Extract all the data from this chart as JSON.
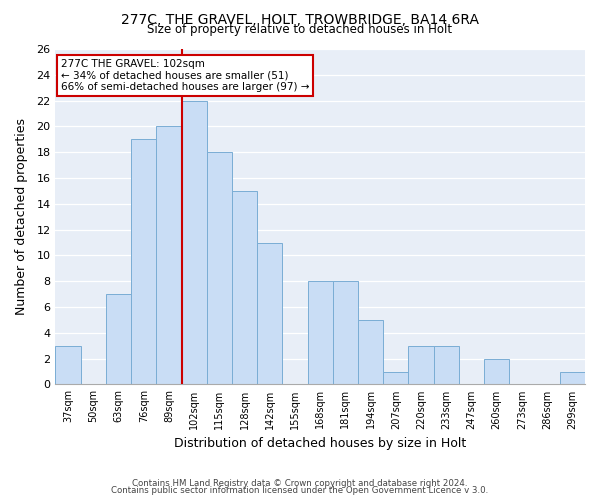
{
  "title1": "277C, THE GRAVEL, HOLT, TROWBRIDGE, BA14 6RA",
  "title2": "Size of property relative to detached houses in Holt",
  "xlabel": "Distribution of detached houses by size in Holt",
  "ylabel": "Number of detached properties",
  "footer1": "Contains HM Land Registry data © Crown copyright and database right 2024.",
  "footer2": "Contains public sector information licensed under the Open Government Licence v 3.0.",
  "bin_labels": [
    "37sqm",
    "50sqm",
    "63sqm",
    "76sqm",
    "89sqm",
    "102sqm",
    "115sqm",
    "128sqm",
    "142sqm",
    "155sqm",
    "168sqm",
    "181sqm",
    "194sqm",
    "207sqm",
    "220sqm",
    "233sqm",
    "247sqm",
    "260sqm",
    "273sqm",
    "286sqm",
    "299sqm"
  ],
  "bar_values": [
    3,
    0,
    7,
    19,
    20,
    22,
    18,
    15,
    11,
    0,
    8,
    8,
    5,
    1,
    3,
    3,
    0,
    2,
    0,
    0,
    1
  ],
  "bar_color": "#c9ddf5",
  "bar_edge_color": "#7aadd4",
  "highlight_bin_index": 5,
  "highlight_color": "#cc0000",
  "ylim": [
    0,
    26
  ],
  "yticks": [
    0,
    2,
    4,
    6,
    8,
    10,
    12,
    14,
    16,
    18,
    20,
    22,
    24,
    26
  ],
  "annotation_title": "277C THE GRAVEL: 102sqm",
  "annotation_line1": "← 34% of detached houses are smaller (51)",
  "annotation_line2": "66% of semi-detached houses are larger (97) →",
  "annotation_box_color": "#ffffff",
  "annotation_box_edge": "#cc0000",
  "bg_color": "#e8eef7"
}
